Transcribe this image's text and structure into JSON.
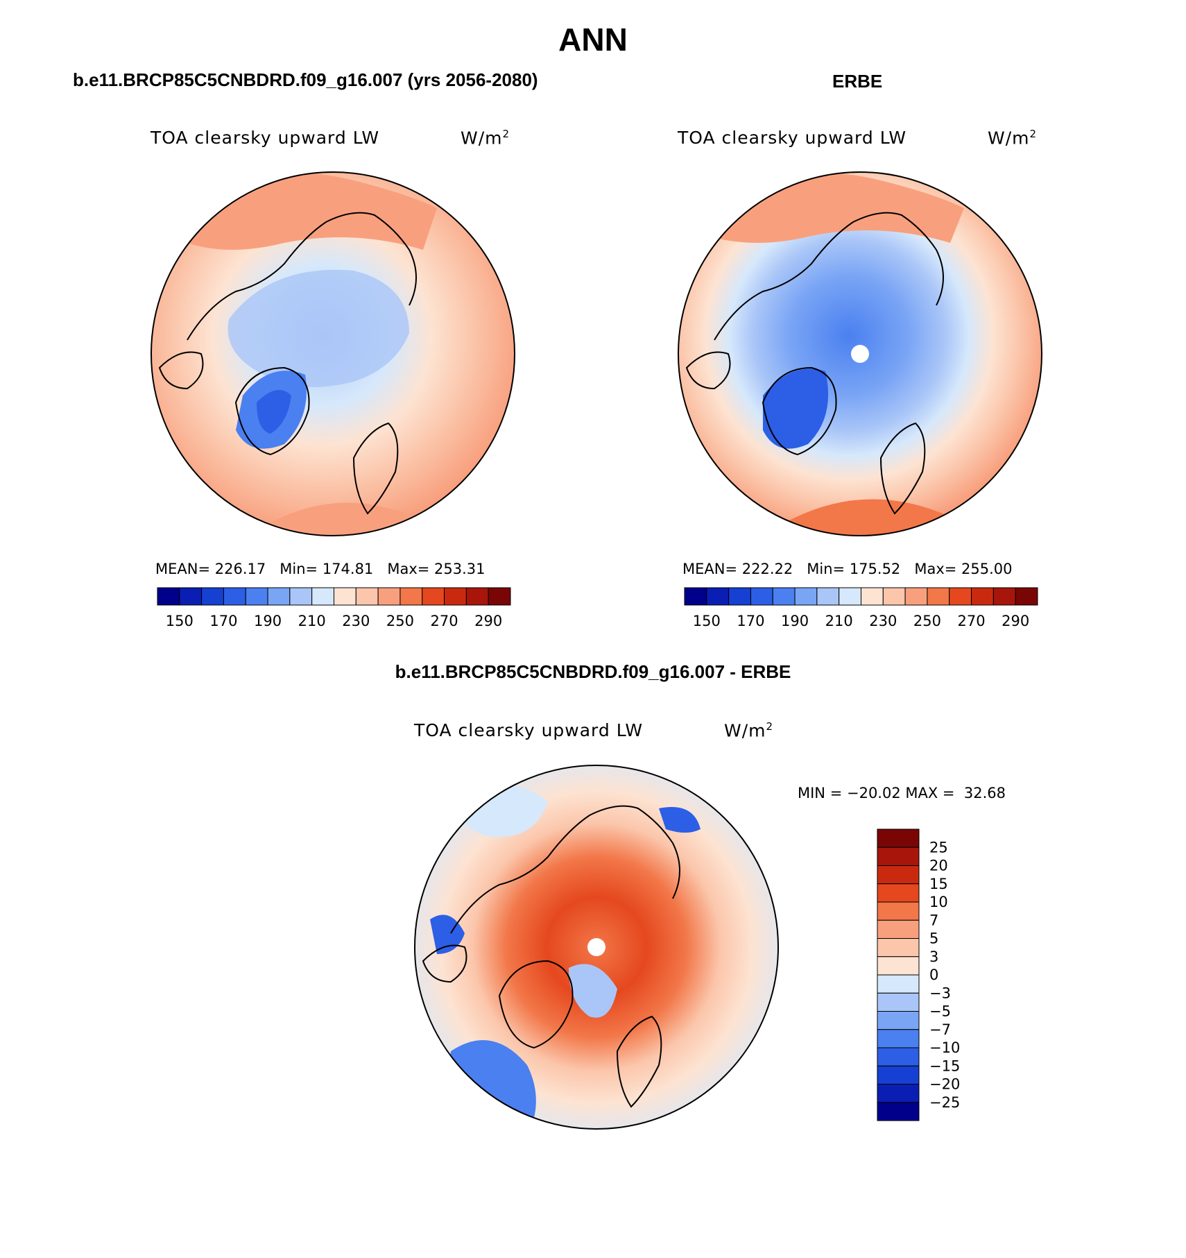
{
  "figure": {
    "title": "ANN"
  },
  "panels": [
    {
      "title": "b.e11.BRCP85C5CNBDRD.f09_g16.007 (yrs 2056-2080)",
      "variable": "TOA clearsky upward LW",
      "units": "W/m",
      "units_exp": "2",
      "stats": {
        "mean_label": "MEAN=",
        "mean": "226.17",
        "min_label": "Min=",
        "min": "174.81",
        "max_label": "Max=",
        "max": "253.31"
      }
    },
    {
      "title": "ERBE",
      "variable": "TOA clearsky upward LW",
      "units": "W/m",
      "units_exp": "2",
      "stats": {
        "mean_label": "MEAN=",
        "mean": "222.22",
        "min_label": "Min=",
        "min": "175.52",
        "max_label": "Max=",
        "max": "255.00"
      }
    },
    {
      "title": "b.e11.BRCP85C5CNBDRD.f09_g16.007 - ERBE",
      "variable": "TOA clearsky upward LW",
      "units": "W/m",
      "units_exp": "2",
      "stats": {
        "min_label": "MIN =",
        "min": "−20.02",
        "max_label": "MAX =",
        "max": "32.68"
      }
    }
  ],
  "chart_data": [
    {
      "type": "heatmap",
      "projection": "north-polar-stereographic",
      "title": "b.e11.BRCP85C5CNBDRD.f09_g16.007 (yrs 2056-2080)",
      "variable": "TOA clearsky upward LW",
      "units": "W/m2",
      "mean": 226.17,
      "min": 174.81,
      "max": 253.31,
      "colorbar": {
        "levels": [
          150,
          160,
          170,
          180,
          190,
          200,
          210,
          220,
          230,
          240,
          250,
          260,
          270,
          280,
          290
        ],
        "tick_labels": [
          "150",
          "170",
          "190",
          "210",
          "230",
          "250",
          "270",
          "290"
        ],
        "colors": [
          "#00008b",
          "#0a1eb4",
          "#1540d2",
          "#2c5fe6",
          "#4a80f0",
          "#7aa5f5",
          "#aac6f8",
          "#d6e8fb",
          "#fde3d2",
          "#fbc6ab",
          "#f8a07e",
          "#f27749",
          "#e5481e",
          "#c92a0f",
          "#a8150b",
          "#7a0505"
        ]
      }
    },
    {
      "type": "heatmap",
      "projection": "north-polar-stereographic",
      "title": "ERBE",
      "variable": "TOA clearsky upward LW",
      "units": "W/m2",
      "mean": 222.22,
      "min": 175.52,
      "max": 255.0,
      "colorbar": {
        "levels": [
          150,
          160,
          170,
          180,
          190,
          200,
          210,
          220,
          230,
          240,
          250,
          260,
          270,
          280,
          290
        ],
        "tick_labels": [
          "150",
          "170",
          "190",
          "210",
          "230",
          "250",
          "270",
          "290"
        ],
        "colors": [
          "#00008b",
          "#0a1eb4",
          "#1540d2",
          "#2c5fe6",
          "#4a80f0",
          "#7aa5f5",
          "#aac6f8",
          "#d6e8fb",
          "#fde3d2",
          "#fbc6ab",
          "#f8a07e",
          "#f27749",
          "#e5481e",
          "#c92a0f",
          "#a8150b",
          "#7a0505"
        ]
      }
    },
    {
      "type": "heatmap",
      "projection": "north-polar-stereographic",
      "title": "b.e11.BRCP85C5CNBDRD.f09_g16.007 - ERBE",
      "variable": "TOA clearsky upward LW",
      "units": "W/m2",
      "min": -20.02,
      "max": 32.68,
      "colorbar": {
        "orientation": "vertical",
        "levels": [
          -25,
          -20,
          -15,
          -10,
          -7,
          -5,
          -3,
          0,
          3,
          5,
          7,
          10,
          15,
          20,
          25
        ],
        "tick_labels": [
          "25",
          "20",
          "15",
          "10",
          "7",
          "5",
          "3",
          "0",
          "−3",
          "−5",
          "−7",
          "−10",
          "−15",
          "−20",
          "−25"
        ],
        "colors": [
          "#00008b",
          "#0a1eb4",
          "#1540d2",
          "#2c5fe6",
          "#4a80f0",
          "#7aa5f5",
          "#aac6f8",
          "#d6e8fb",
          "#fde3d2",
          "#fbc6ab",
          "#f8a07e",
          "#f27749",
          "#e5481e",
          "#c92a0f",
          "#a8150b",
          "#7a0505"
        ]
      }
    }
  ]
}
